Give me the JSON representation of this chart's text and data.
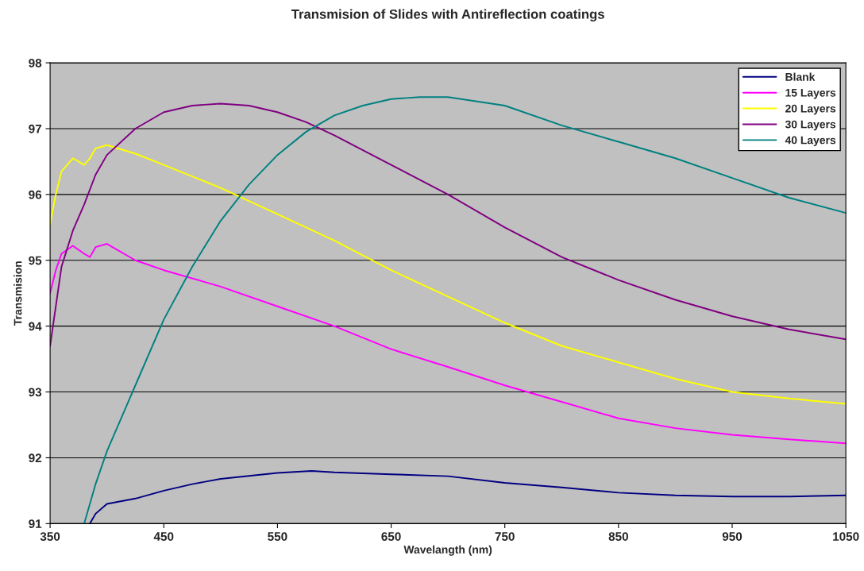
{
  "chart_data": {
    "type": "line",
    "title": "Transmision of Slides with Antireflection coatings",
    "xlabel": "Wavelangth (nm)",
    "ylabel": "Transmision",
    "xlim": [
      350,
      1050
    ],
    "xticks": [
      350,
      450,
      550,
      650,
      750,
      850,
      950,
      1050
    ],
    "ylim": [
      91,
      98
    ],
    "yticks": [
      91,
      92,
      93,
      94,
      95,
      96,
      97,
      98
    ],
    "grid": "y",
    "legend": "top right",
    "marker": "none",
    "line_style": "solid",
    "series": [
      {
        "name": "Blank",
        "color": "#000080",
        "x": [
          385,
          390,
          400,
          425,
          450,
          475,
          500,
          550,
          580,
          600,
          650,
          700,
          750,
          800,
          850,
          900,
          950,
          1000,
          1050
        ],
        "values": [
          91.0,
          91.15,
          91.3,
          91.38,
          91.5,
          91.6,
          91.68,
          91.77,
          91.8,
          91.78,
          91.75,
          91.72,
          91.62,
          91.55,
          91.47,
          91.43,
          91.41,
          91.41,
          91.43
        ]
      },
      {
        "name": "15 Layers",
        "color": "#ff00ff",
        "x": [
          350,
          355,
          360,
          370,
          380,
          385,
          390,
          400,
          425,
          450,
          500,
          550,
          600,
          650,
          700,
          750,
          800,
          850,
          900,
          950,
          1000,
          1050
        ],
        "values": [
          94.5,
          94.85,
          95.1,
          95.22,
          95.1,
          95.05,
          95.2,
          95.25,
          95.0,
          94.85,
          94.6,
          94.3,
          94.0,
          93.65,
          93.38,
          93.1,
          92.85,
          92.6,
          92.45,
          92.35,
          92.28,
          92.22
        ]
      },
      {
        "name": "20 Layers",
        "color": "#ffff00",
        "x": [
          350,
          355,
          360,
          370,
          380,
          385,
          390,
          400,
          425,
          450,
          500,
          550,
          600,
          650,
          700,
          750,
          800,
          850,
          900,
          950,
          1000,
          1050
        ],
        "values": [
          95.55,
          96.0,
          96.35,
          96.55,
          96.45,
          96.55,
          96.7,
          96.75,
          96.62,
          96.45,
          96.1,
          95.7,
          95.3,
          94.85,
          94.45,
          94.05,
          93.7,
          93.45,
          93.2,
          93.0,
          92.9,
          92.82
        ]
      },
      {
        "name": "30 Layers",
        "color": "#800080",
        "x": [
          350,
          355,
          360,
          370,
          380,
          390,
          400,
          425,
          450,
          475,
          500,
          525,
          550,
          575,
          600,
          650,
          700,
          750,
          800,
          850,
          900,
          950,
          1000,
          1050
        ],
        "values": [
          93.7,
          94.3,
          94.9,
          95.45,
          95.85,
          96.3,
          96.6,
          97.0,
          97.25,
          97.35,
          97.38,
          97.35,
          97.25,
          97.1,
          96.9,
          96.45,
          96.0,
          95.5,
          95.05,
          94.7,
          94.4,
          94.15,
          93.95,
          93.8
        ]
      },
      {
        "name": "40 Layers",
        "color": "#008080",
        "x": [
          380,
          390,
          400,
          425,
          450,
          475,
          500,
          525,
          550,
          575,
          600,
          625,
          650,
          675,
          700,
          750,
          800,
          850,
          900,
          950,
          1000,
          1050
        ],
        "values": [
          91.0,
          91.6,
          92.1,
          93.1,
          94.1,
          94.9,
          95.6,
          96.15,
          96.6,
          96.95,
          97.2,
          97.35,
          97.45,
          97.48,
          97.48,
          97.35,
          97.05,
          96.8,
          96.55,
          96.25,
          95.95,
          95.72
        ]
      }
    ]
  }
}
